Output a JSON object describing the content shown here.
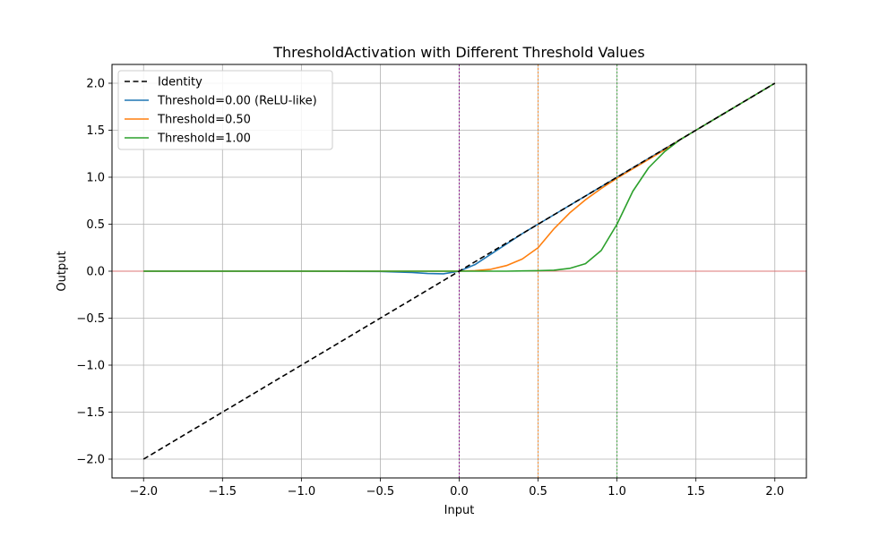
{
  "chart_data": {
    "type": "line",
    "title": "ThresholdActivation with Different Threshold Values",
    "xlabel": "Input",
    "ylabel": "Output",
    "xlim": [
      -2.2,
      2.2
    ],
    "ylim": [
      -2.2,
      2.2
    ],
    "x_ticks": [
      -2.0,
      -1.5,
      -1.0,
      -0.5,
      0.0,
      0.5,
      1.0,
      1.5,
      2.0
    ],
    "y_ticks": [
      -2.0,
      -1.5,
      -1.0,
      -0.5,
      0.0,
      0.5,
      1.0,
      1.5,
      2.0
    ],
    "x_tick_labels": [
      "−2.0",
      "−1.5",
      "−1.0",
      "−0.5",
      "0.0",
      "0.5",
      "1.0",
      "1.5",
      "2.0"
    ],
    "y_tick_labels": [
      "−2.0",
      "−1.5",
      "−1.0",
      "−0.5",
      "0.0",
      "0.5",
      "1.0",
      "1.5",
      "2.0"
    ],
    "grid": true,
    "legend_position": "top-left",
    "x": [
      -2.0,
      -1.5,
      -1.0,
      -0.5,
      -0.3,
      -0.2,
      -0.1,
      0.0,
      0.1,
      0.2,
      0.3,
      0.4,
      0.5,
      0.6,
      0.7,
      0.8,
      0.9,
      1.0,
      1.1,
      1.2,
      1.3,
      1.4,
      1.5,
      1.75,
      2.0
    ],
    "series": [
      {
        "name": "Identity",
        "color": "#000000",
        "dash": "dashed",
        "values": [
          -2.0,
          -1.5,
          -1.0,
          -0.5,
          -0.3,
          -0.2,
          -0.1,
          0.0,
          0.1,
          0.2,
          0.3,
          0.4,
          0.5,
          0.6,
          0.7,
          0.8,
          0.9,
          1.0,
          1.1,
          1.2,
          1.3,
          1.4,
          1.5,
          1.75,
          2.0
        ]
      },
      {
        "name": "Threshold=0.00 (ReLU-like)",
        "color": "#1f77b4",
        "dash": "solid",
        "values": [
          0.0,
          0.0,
          0.0,
          -0.003,
          -0.014,
          -0.024,
          -0.028,
          0.0,
          0.07,
          0.18,
          0.29,
          0.4,
          0.5,
          0.6,
          0.7,
          0.8,
          0.9,
          1.0,
          1.1,
          1.2,
          1.3,
          1.4,
          1.5,
          1.75,
          2.0
        ]
      },
      {
        "name": "Threshold=0.50",
        "color": "#ff7f0e",
        "dash": "solid",
        "values": [
          0.0,
          0.0,
          0.0,
          0.0,
          0.0,
          0.0,
          0.0,
          0.0,
          0.005,
          0.02,
          0.06,
          0.13,
          0.25,
          0.45,
          0.62,
          0.76,
          0.88,
          0.99,
          1.09,
          1.19,
          1.29,
          1.4,
          1.5,
          1.75,
          2.0
        ]
      },
      {
        "name": "Threshold=1.00",
        "color": "#2ca02c",
        "dash": "solid",
        "values": [
          0.0,
          0.0,
          0.0,
          0.0,
          0.0,
          0.0,
          0.0,
          0.0,
          0.0,
          0.0,
          0.0,
          0.003,
          0.005,
          0.01,
          0.03,
          0.08,
          0.22,
          0.5,
          0.85,
          1.1,
          1.27,
          1.4,
          1.5,
          1.75,
          2.0
        ]
      }
    ],
    "reference_lines": [
      {
        "axis": "y",
        "value": 0.0,
        "color": "#e06666"
      },
      {
        "axis": "x",
        "value": 0.0,
        "color": "#800080"
      },
      {
        "axis": "x",
        "value": 0.5,
        "color": "#ff7f0e"
      },
      {
        "axis": "x",
        "value": 1.0,
        "color": "#2ca02c"
      }
    ]
  }
}
